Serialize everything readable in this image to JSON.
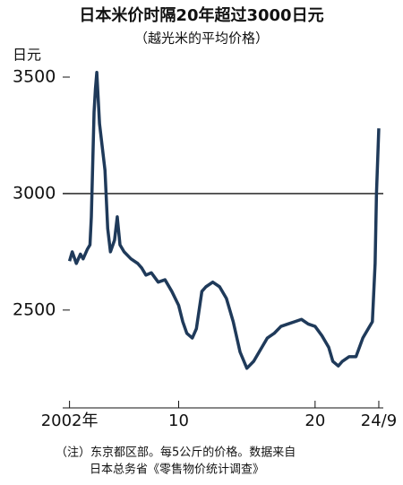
{
  "chart_data": {
    "type": "line",
    "title": "日本米价时隔20年超过3000日元",
    "subtitle": "（越光米的平均价格）",
    "y_label": "日元",
    "notes": [
      "（注）东京都区部。每5公斤的价格。数据来自",
      "日本总务省《零售物价统计调查》"
    ],
    "x": [
      2002.0,
      2002.2,
      2002.5,
      2002.8,
      2003.0,
      2003.3,
      2003.5,
      2003.6,
      2003.8,
      2003.9,
      2004.0,
      2004.2,
      2004.4,
      2004.6,
      2004.8,
      2005.0,
      2005.3,
      2005.5,
      2005.7,
      2006.0,
      2006.5,
      2007.0,
      2007.3,
      2007.6,
      2008.0,
      2008.5,
      2009.0,
      2009.5,
      2010.0,
      2010.3,
      2010.6,
      2011.0,
      2011.3,
      2011.7,
      2012.0,
      2012.5,
      2013.0,
      2013.5,
      2014.0,
      2014.5,
      2015.0,
      2015.5,
      2016.0,
      2016.5,
      2017.0,
      2017.5,
      2018.0,
      2018.5,
      2019.0,
      2019.5,
      2020.0,
      2020.5,
      2021.0,
      2021.3,
      2021.7,
      2022.0,
      2022.5,
      2023.0,
      2023.5,
      2023.9,
      2024.2,
      2024.4,
      2024.5,
      2024.67
    ],
    "series": [
      {
        "name": "越光米",
        "color": "#1f3a5a",
        "values": [
          2710,
          2750,
          2700,
          2740,
          2720,
          2760,
          2780,
          2900,
          3350,
          3450,
          3520,
          3300,
          3200,
          3100,
          2850,
          2750,
          2800,
          2900,
          2780,
          2750,
          2720,
          2700,
          2680,
          2650,
          2660,
          2620,
          2630,
          2580,
          2520,
          2450,
          2400,
          2380,
          2420,
          2580,
          2600,
          2620,
          2600,
          2550,
          2450,
          2320,
          2250,
          2280,
          2330,
          2380,
          2400,
          2430,
          2440,
          2450,
          2460,
          2440,
          2430,
          2390,
          2340,
          2280,
          2260,
          2280,
          2300,
          2300,
          2380,
          2420,
          2450,
          2700,
          3000,
          3280
        ]
      }
    ],
    "hline": 3000,
    "xlim": [
      2001.5,
      2025
    ],
    "ylim": [
      2080,
      3600
    ],
    "yticks": [
      2500,
      3000,
      3500
    ],
    "xticks": [
      {
        "value": 2002,
        "label": "2002年"
      },
      {
        "value": 2010,
        "label": "10"
      },
      {
        "value": 2020,
        "label": "20"
      },
      {
        "value": 2024.67,
        "label": "24/9"
      }
    ]
  }
}
